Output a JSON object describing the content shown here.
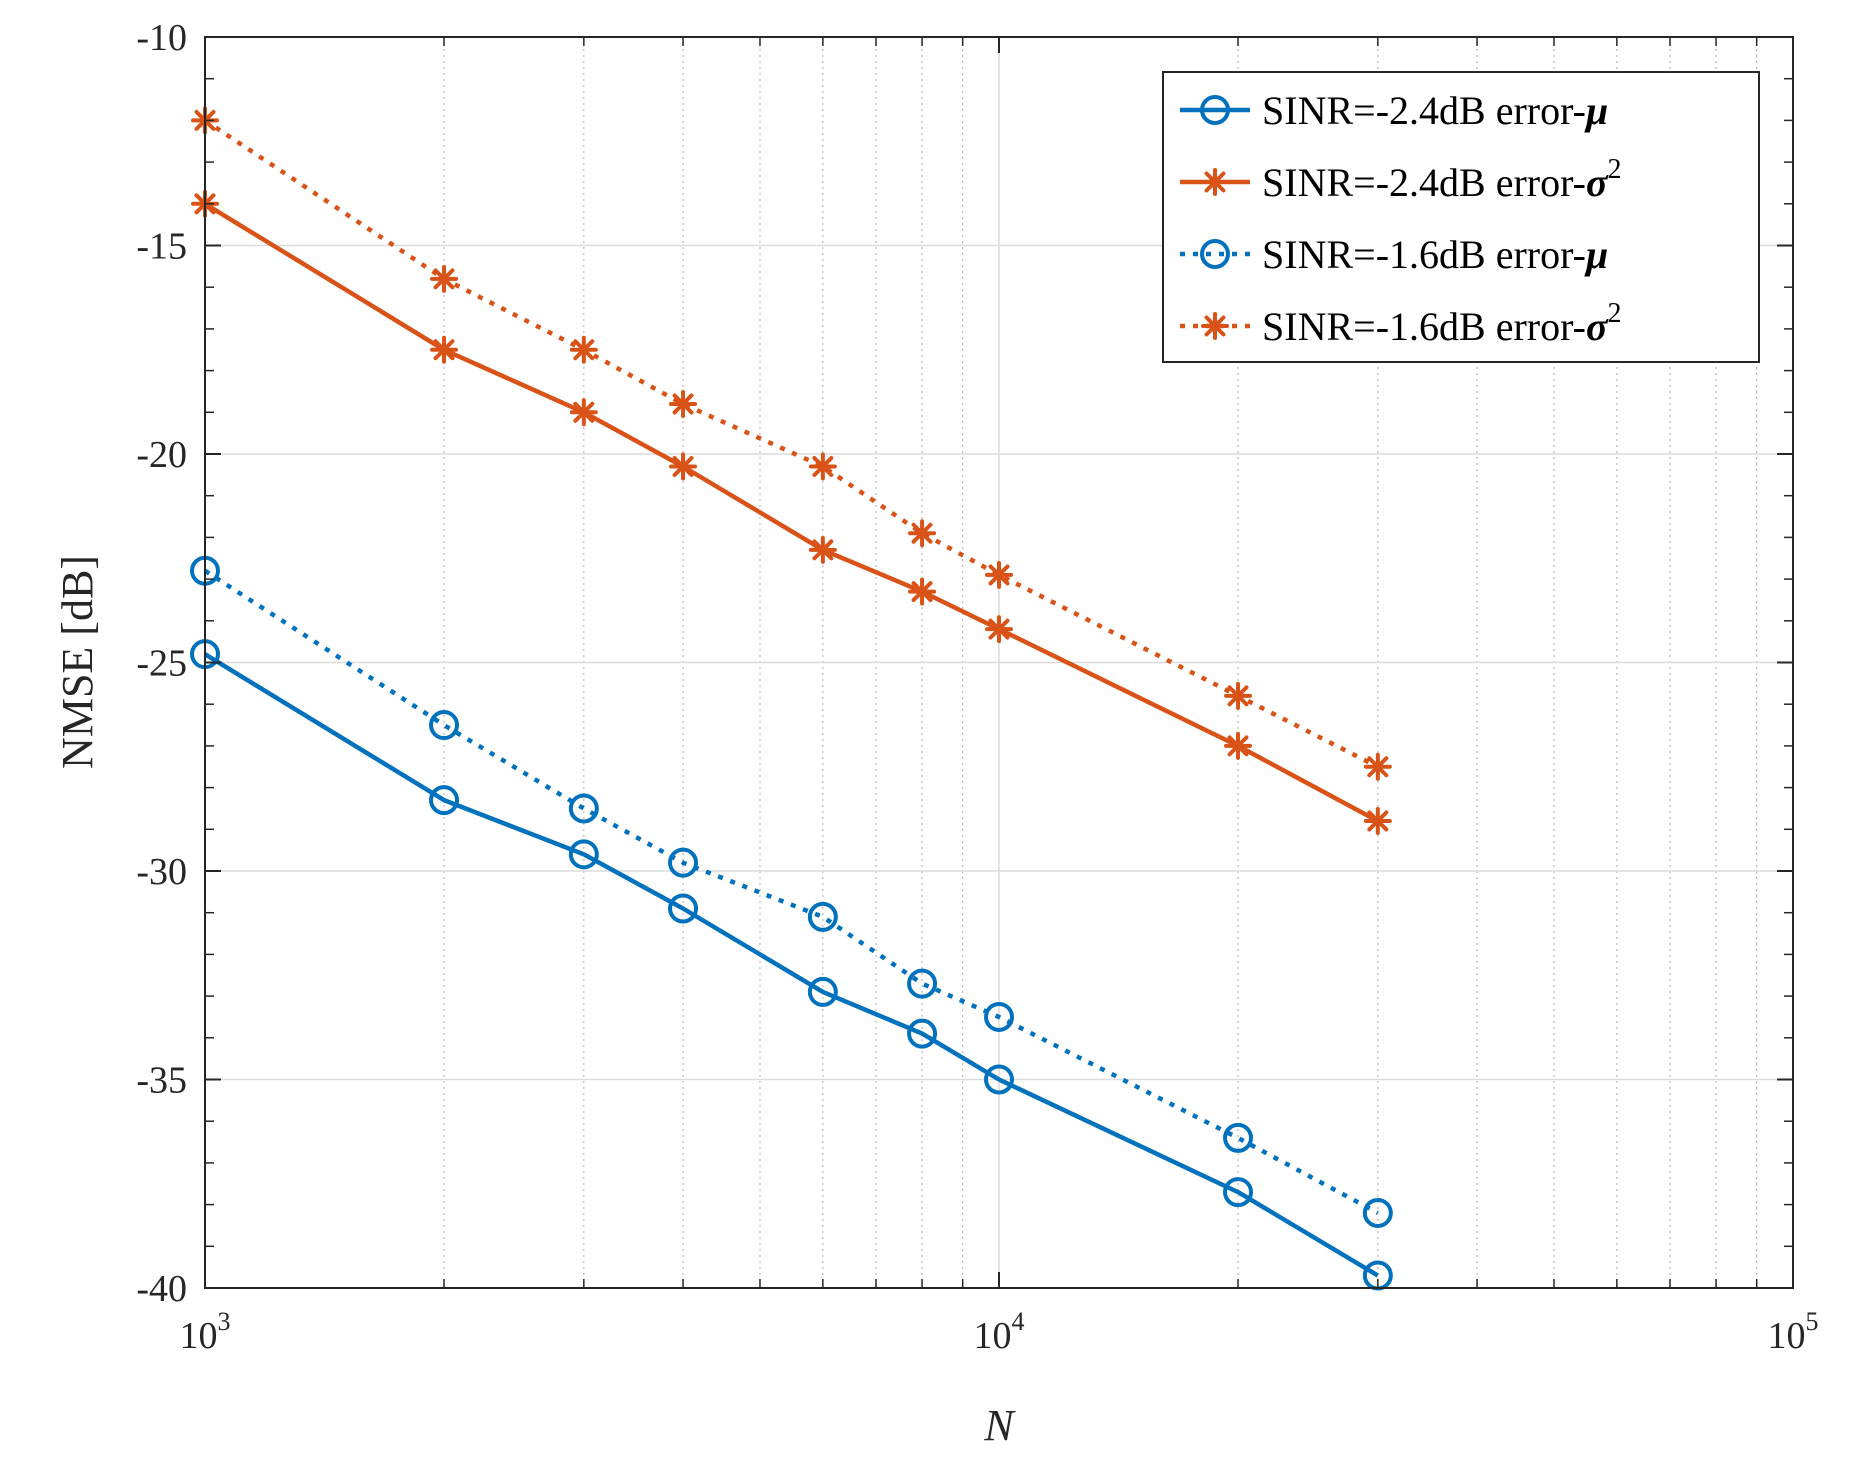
{
  "chart_data": {
    "type": "line",
    "title": "",
    "xlabel": "N",
    "ylabel": "NMSE [dB]",
    "xscale": "log",
    "xlim": [
      1000,
      100000
    ],
    "ylim": [
      -40,
      -10
    ],
    "grid": true,
    "legend_position": "top-right",
    "x_tick_values": [
      1000,
      10000,
      100000
    ],
    "x_tick_labels": [
      {
        "base": "10",
        "exp": "3"
      },
      {
        "base": "10",
        "exp": "4"
      },
      {
        "base": "10",
        "exp": "5"
      }
    ],
    "y_ticks": [
      -10,
      -15,
      -20,
      -25,
      -30,
      -35,
      -40
    ],
    "y_tick_labels": [
      "-10",
      "-15",
      "-20",
      "-25",
      "-30",
      "-35",
      "-40"
    ],
    "x": [
      1000,
      2000,
      3000,
      4000,
      6000,
      8000,
      10000,
      20000,
      30000
    ],
    "series": [
      {
        "name": "SINR=-2.4dB error-",
        "symbol": "μ",
        "sup": "",
        "color": "#0072BD",
        "line": "solid",
        "marker": "circle",
        "values": [
          -24.8,
          -28.3,
          -29.6,
          -30.9,
          -32.9,
          -33.9,
          -35.0,
          -37.7,
          -39.7
        ]
      },
      {
        "name": "SINR=-2.4dB error-",
        "symbol": "σ",
        "sup": "2",
        "color": "#D95319",
        "line": "solid",
        "marker": "asterisk",
        "values": [
          -14.0,
          -17.5,
          -19.0,
          -20.3,
          -22.3,
          -23.3,
          -24.2,
          -27.0,
          -28.8
        ]
      },
      {
        "name": "SINR=-1.6dB error-",
        "symbol": "μ",
        "sup": "",
        "color": "#0072BD",
        "line": "dotted",
        "marker": "circle",
        "values": [
          -22.8,
          -26.5,
          -28.5,
          -29.8,
          -31.1,
          -32.7,
          -33.5,
          -36.4,
          -38.2
        ]
      },
      {
        "name": "SINR=-1.6dB error-",
        "symbol": "σ",
        "sup": "2",
        "color": "#D95319",
        "line": "dotted",
        "marker": "asterisk",
        "values": [
          -12.0,
          -15.8,
          -17.5,
          -18.8,
          -20.3,
          -21.9,
          -22.9,
          -25.8,
          -27.5
        ]
      }
    ]
  }
}
